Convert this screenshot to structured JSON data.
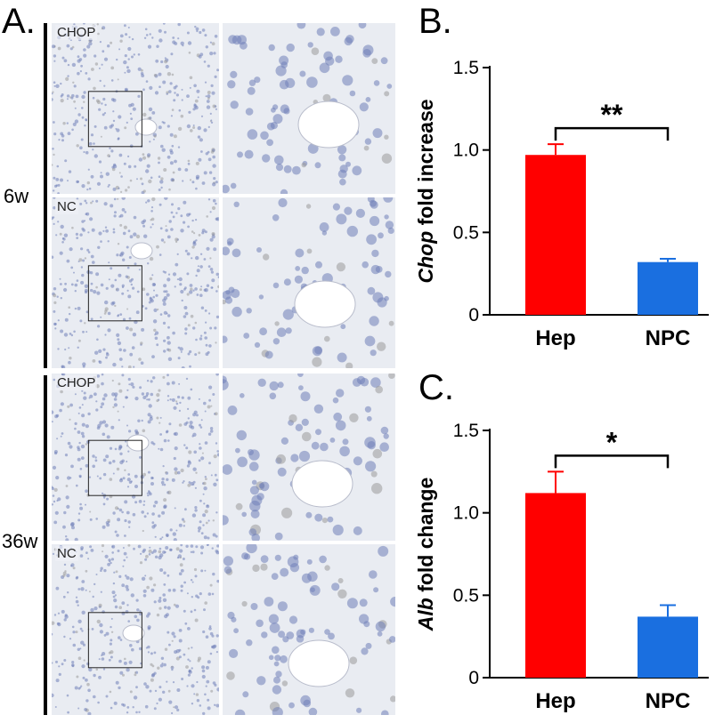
{
  "panels": {
    "a": "A.",
    "b": "B.",
    "c": "C."
  },
  "row_labels": {
    "top": "6w",
    "bottom": "36w"
  },
  "micrographs": [
    {
      "label": "CHOP"
    },
    {
      "label": ""
    },
    {
      "label": "NC"
    },
    {
      "label": ""
    },
    {
      "label": "CHOP"
    },
    {
      "label": ""
    },
    {
      "label": "NC"
    },
    {
      "label": ""
    }
  ],
  "colors": {
    "hep": "#ff0000",
    "npc": "#1a6fe0",
    "tissue_bg": "#e9ecf2",
    "nuclei": "#6f7fb8"
  },
  "chart_data": [
    {
      "type": "bar",
      "categories": [
        "Hep",
        "NPC"
      ],
      "values": [
        0.97,
        0.32
      ],
      "errors": [
        0.065,
        0.02
      ],
      "ylim": [
        0,
        1.5
      ],
      "yticks": [
        "0",
        "0.5",
        "1.0",
        "1.5"
      ],
      "ylabel_italic": "Chop",
      "ylabel_rest": " fold increase",
      "significance": "**"
    },
    {
      "type": "bar",
      "categories": [
        "Hep",
        "NPC"
      ],
      "values": [
        1.12,
        0.37
      ],
      "errors": [
        0.13,
        0.07
      ],
      "ylim": [
        0,
        1.5
      ],
      "yticks": [
        "0",
        "0.5",
        "1.0",
        "1.5"
      ],
      "ylabel_italic": "Alb",
      "ylabel_rest": " fold change",
      "significance": "*"
    }
  ]
}
